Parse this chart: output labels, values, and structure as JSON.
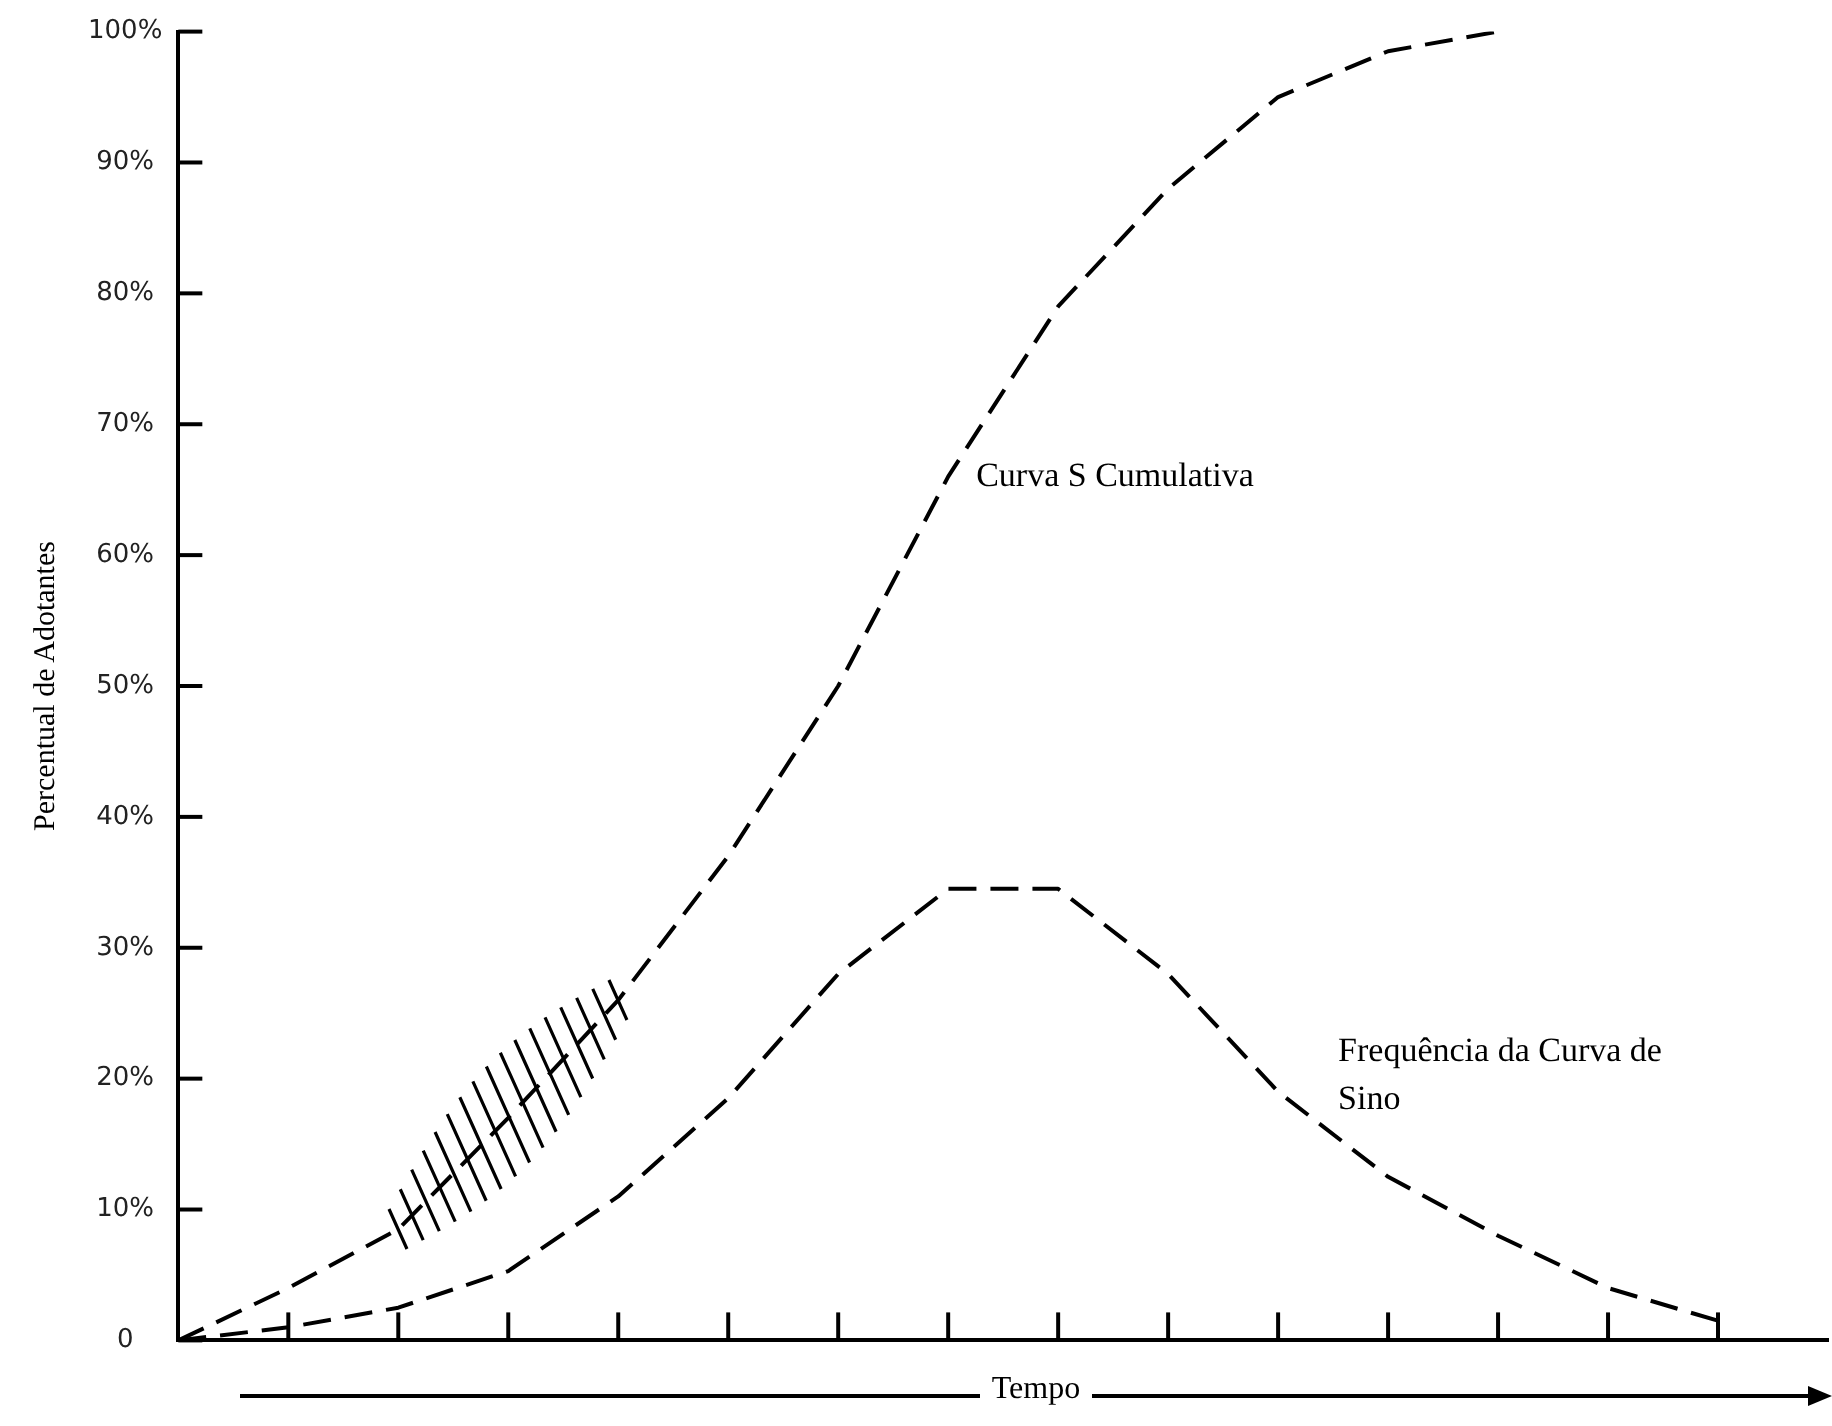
{
  "chart_data": {
    "type": "line",
    "xlabel": "Tempo",
    "ylabel": "Percentual de Adotantes",
    "categories": [
      null,
      null,
      null,
      null,
      null,
      null,
      null,
      null,
      null,
      null,
      null,
      null,
      null,
      null,
      null,
      null
    ],
    "ylim": [
      0,
      100
    ],
    "yticks": [
      0,
      {
        "value": 10,
        "label": "10%"
      },
      {
        "value": 20,
        "label": "20%"
      },
      {
        "value": 30,
        "label": "30%"
      },
      {
        "value": 40,
        "label": "40%"
      },
      {
        "value": 50,
        "label": "50%"
      },
      {
        "value": 60,
        "label": "60%"
      },
      {
        "value": 70,
        "label": "70%"
      },
      {
        "value": 80,
        "label": "80%"
      },
      {
        "value": 90,
        "label": "90%"
      },
      {
        "value": 100,
        "label": "100%"
      }
    ],
    "tick_labels": "y",
    "grid": false,
    "legend": false,
    "marker": "none",
    "line_style": "dashed",
    "series": [
      {
        "name": "Curva S Cumulativa",
        "color": "#000000",
        "values": [
          0,
          4,
          8.5,
          17,
          26,
          37,
          50,
          66,
          79,
          88,
          95,
          98.5,
          100,
          null,
          null,
          null
        ]
      },
      {
        "name": "Frequência da Curva de Sino",
        "color": "#000000",
        "values": [
          0,
          1,
          2.5,
          5.3,
          11,
          18.5,
          28,
          34.5,
          34.5,
          28,
          19,
          12.5,
          8,
          4,
          1.5,
          null
        ]
      }
    ]
  }
}
